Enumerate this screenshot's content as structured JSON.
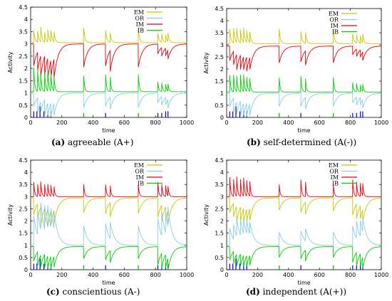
{
  "chart_data": [
    {
      "type": "line",
      "caption_letter": "(a)",
      "caption_text": " agreeable (A+)",
      "xlabel": "time",
      "ylabel": "Activity",
      "xlim": [
        0,
        1000
      ],
      "ylim": [
        0,
        4.5
      ],
      "xticks": [
        "0",
        "200",
        "400",
        "600",
        "800",
        "1000"
      ],
      "yticks": [
        "0",
        "0.5",
        "1",
        "1.5",
        "2",
        "2.5",
        "3",
        "3.5",
        "4",
        "4.5"
      ],
      "legend_position": "top-right",
      "events": [
        20,
        45,
        65,
        90,
        110,
        130,
        150,
        340,
        480,
        510,
        690,
        815,
        840,
        865,
        880
      ],
      "series": [
        {
          "name": "EM",
          "color": "#c8c800",
          "baseline": 3.05,
          "spikes": [
            0.5,
            0.45,
            0.6,
            0.4,
            0.5,
            0.45,
            0.4,
            0.6,
            0.5,
            0.4,
            0.6,
            0.4,
            0.35,
            0.3,
            0.35
          ],
          "decay": 8
        },
        {
          "name": "OR",
          "color": "#87cfe6",
          "baseline": 1.0,
          "spikes": [
            -0.55,
            -0.6,
            -0.4,
            -0.65,
            -0.5,
            -0.55,
            -0.5,
            -0.6,
            -0.55,
            -0.5,
            -0.6,
            -0.4,
            -0.35,
            -0.3,
            -0.35
          ],
          "decay": 25
        },
        {
          "name": "IM",
          "color": "#e8000a",
          "baseline": 3.0,
          "spikes": [
            -0.9,
            -0.75,
            -0.85,
            -0.8,
            -0.9,
            -0.7,
            -0.8,
            -0.95,
            -0.9,
            -0.85,
            -0.95,
            -0.4,
            -0.35,
            -0.3,
            -0.35
          ],
          "decay": 25
        },
        {
          "name": "IB",
          "color": "#00d000",
          "baseline": 1.05,
          "spikes": [
            1.0,
            0.9,
            0.7,
            0.8,
            0.85,
            0.7,
            0.6,
            0.65,
            0.7,
            0.6,
            0.7,
            0.4,
            0.35,
            0.3,
            0.3
          ],
          "decay": 6
        }
      ],
      "stems": [
        {
          "color": "#0000e0",
          "x": [
            20,
            40,
            60,
            85,
            110,
            130
          ],
          "values": [
            0.25,
            0.25,
            0.45,
            0.25,
            0.25,
            0.25
          ]
        },
        {
          "color": "#00b000",
          "x": [
            340,
            690
          ],
          "values": [
            0.18,
            0.18
          ]
        },
        {
          "color": "#0000e0",
          "x": [
            480,
            815,
            840,
            865,
            880
          ],
          "values": [
            0.18,
            0.18,
            0.18,
            0.25,
            0.25
          ]
        }
      ]
    },
    {
      "type": "line",
      "caption_letter": "(b)",
      "caption_text": " self-determined (A(-))",
      "xlabel": "time",
      "ylabel": "Activity",
      "xlim": [
        0,
        1000
      ],
      "ylim": [
        0,
        4.5
      ],
      "xticks": [
        "0",
        "200",
        "400",
        "600",
        "800",
        "1000"
      ],
      "yticks": [
        "0",
        "0.5",
        "1",
        "1.5",
        "2",
        "2.5",
        "3",
        "3.5",
        "4",
        "4.5"
      ],
      "legend_position": "top-right",
      "events": [
        20,
        45,
        65,
        90,
        110,
        130,
        150,
        340,
        480,
        510,
        690,
        815,
        840,
        865,
        880
      ],
      "series": [
        {
          "name": "EM",
          "color": "#c8c800",
          "baseline": 3.05,
          "spikes": [
            0.6,
            0.6,
            0.6,
            0.55,
            0.6,
            0.5,
            0.45,
            0.6,
            0.5,
            0.45,
            0.6,
            0.4,
            0.35,
            0.3,
            0.35
          ],
          "decay": 8
        },
        {
          "name": "OR",
          "color": "#87cfe6",
          "baseline": 1.0,
          "spikes": [
            -0.55,
            -0.6,
            -0.5,
            -0.6,
            -0.5,
            -0.55,
            -0.5,
            -0.55,
            -0.55,
            -0.5,
            -0.55,
            -0.4,
            -0.35,
            -0.3,
            -0.35
          ],
          "decay": 25
        },
        {
          "name": "IM",
          "color": "#e8000a",
          "baseline": 2.95,
          "spikes": [
            -0.6,
            -0.55,
            -0.65,
            -0.6,
            -0.55,
            -0.6,
            -0.5,
            -0.7,
            -0.65,
            -0.6,
            -0.7,
            -0.35,
            -0.3,
            -0.3,
            -0.35
          ],
          "decay": 25
        },
        {
          "name": "IB",
          "color": "#00d000",
          "baseline": 1.05,
          "spikes": [
            0.7,
            0.7,
            0.65,
            0.7,
            0.7,
            0.6,
            0.55,
            0.6,
            0.65,
            0.55,
            0.6,
            0.4,
            0.35,
            0.3,
            0.3
          ],
          "decay": 6
        }
      ],
      "stems": [
        {
          "color": "#0000e0",
          "x": [
            20,
            40,
            60,
            85,
            110,
            130
          ],
          "values": [
            0.25,
            0.25,
            0.45,
            0.25,
            0.25,
            0.25
          ]
        },
        {
          "color": "#00b000",
          "x": [
            340,
            690
          ],
          "values": [
            0.18,
            0.18
          ]
        },
        {
          "color": "#0000e0",
          "x": [
            480,
            815,
            840,
            865,
            880
          ],
          "values": [
            0.18,
            0.18,
            0.18,
            0.25,
            0.25
          ]
        }
      ]
    },
    {
      "type": "line",
      "caption_letter": "(c)",
      "caption_text": " conscientious (A-)",
      "xlabel": "time",
      "ylabel": "Activity",
      "xlim": [
        0,
        1000
      ],
      "ylim": [
        0,
        4.5
      ],
      "xticks": [
        "0",
        "200",
        "400",
        "600",
        "800",
        "1000"
      ],
      "yticks": [
        "0",
        "0.5",
        "1",
        "1.5",
        "2",
        "2.5",
        "3",
        "3.5",
        "4",
        "4.5"
      ],
      "legend_position": "top-right",
      "events": [
        20,
        45,
        65,
        90,
        110,
        130,
        150,
        340,
        480,
        510,
        690,
        815,
        840,
        865,
        880
      ],
      "series": [
        {
          "name": "EM",
          "color": "#c8c800",
          "baseline": 2.95,
          "spikes": [
            -0.7,
            -0.6,
            -0.75,
            -0.65,
            -0.7,
            -0.6,
            -0.55,
            -0.6,
            -0.65,
            -0.6,
            -0.65,
            -0.8,
            -0.7,
            -0.6,
            -0.55
          ],
          "decay": 25
        },
        {
          "name": "OR",
          "color": "#87cfe6",
          "baseline": 1.0,
          "spikes": [
            1.2,
            1.0,
            1.1,
            1.0,
            0.9,
            0.8,
            0.7,
            0.8,
            0.9,
            0.7,
            0.8,
            1.1,
            1.0,
            0.9,
            0.8
          ],
          "decay": 25
        },
        {
          "name": "IM",
          "color": "#e8000a",
          "baseline": 3.0,
          "spikes": [
            0.6,
            0.5,
            0.6,
            0.5,
            0.5,
            0.45,
            0.4,
            0.5,
            0.5,
            0.45,
            0.5,
            0.6,
            0.5,
            0.45,
            0.4
          ],
          "decay": 6
        },
        {
          "name": "IB",
          "color": "#00d000",
          "baseline": 0.95,
          "spikes": [
            -0.6,
            -0.55,
            -0.5,
            -0.55,
            -0.5,
            -0.5,
            -0.45,
            -0.5,
            -0.55,
            -0.5,
            -0.5,
            -0.75,
            -0.6,
            -0.55,
            -0.5
          ],
          "decay": 25
        }
      ],
      "stems": [
        {
          "color": "#0000e0",
          "x": [
            20,
            40,
            60,
            85,
            110,
            130
          ],
          "values": [
            0.25,
            0.25,
            0.45,
            0.25,
            0.25,
            0.25
          ]
        },
        {
          "color": "#00b000",
          "x": [
            340,
            690
          ],
          "values": [
            0.18,
            0.18
          ]
        },
        {
          "color": "#0000e0",
          "x": [
            480,
            815,
            840,
            865,
            880
          ],
          "values": [
            0.18,
            0.18,
            0.18,
            0.25,
            0.25
          ]
        }
      ]
    },
    {
      "type": "line",
      "caption_letter": "(d)",
      "caption_text": " independent (A(+))",
      "xlabel": "time",
      "ylabel": "Activity",
      "xlim": [
        0,
        1000
      ],
      "ylim": [
        0,
        4.5
      ],
      "xticks": [
        "0",
        "200",
        "400",
        "600",
        "800",
        "1000"
      ],
      "yticks": [
        "0",
        "0.5",
        "1",
        "1.5",
        "2",
        "2.5",
        "3",
        "3.5",
        "4",
        "4.5"
      ],
      "legend_position": "top-right",
      "events": [
        20,
        45,
        65,
        90,
        110,
        130,
        150,
        340,
        480,
        510,
        690,
        815,
        840,
        865,
        880
      ],
      "series": [
        {
          "name": "EM",
          "color": "#c8c800",
          "baseline": 2.95,
          "spikes": [
            -0.6,
            -0.55,
            -0.65,
            -0.6,
            -0.6,
            -0.5,
            -0.5,
            -0.5,
            -0.6,
            -0.5,
            -0.55,
            -0.7,
            -0.6,
            -0.55,
            -0.5
          ],
          "decay": 25
        },
        {
          "name": "OR",
          "color": "#87cfe6",
          "baseline": 1.0,
          "spikes": [
            0.7,
            0.6,
            0.7,
            0.65,
            0.6,
            0.55,
            0.5,
            0.55,
            0.6,
            0.5,
            0.55,
            0.8,
            0.7,
            0.65,
            0.6
          ],
          "decay": 25
        },
        {
          "name": "IM",
          "color": "#e8000a",
          "baseline": 3.0,
          "spikes": [
            0.8,
            0.7,
            0.8,
            0.7,
            0.75,
            0.65,
            0.6,
            0.5,
            0.7,
            0.6,
            0.5,
            0.7,
            0.6,
            0.55,
            0.5
          ],
          "decay": 6
        },
        {
          "name": "IB",
          "color": "#00d000",
          "baseline": 0.95,
          "spikes": [
            -0.55,
            -0.5,
            -0.5,
            -0.5,
            -0.45,
            -0.45,
            -0.4,
            -0.45,
            -0.5,
            -0.45,
            -0.45,
            -0.65,
            -0.55,
            -0.5,
            -0.45
          ],
          "decay": 25
        }
      ],
      "stems": [
        {
          "color": "#0000e0",
          "x": [
            20,
            40,
            60,
            85,
            110,
            130
          ],
          "values": [
            0.25,
            0.25,
            0.45,
            0.25,
            0.25,
            0.25
          ]
        },
        {
          "color": "#00b000",
          "x": [
            340,
            690
          ],
          "values": [
            0.18,
            0.18
          ]
        },
        {
          "color": "#0000e0",
          "x": [
            480,
            815,
            840,
            865,
            880
          ],
          "values": [
            0.18,
            0.18,
            0.18,
            0.25,
            0.25
          ]
        }
      ]
    }
  ]
}
